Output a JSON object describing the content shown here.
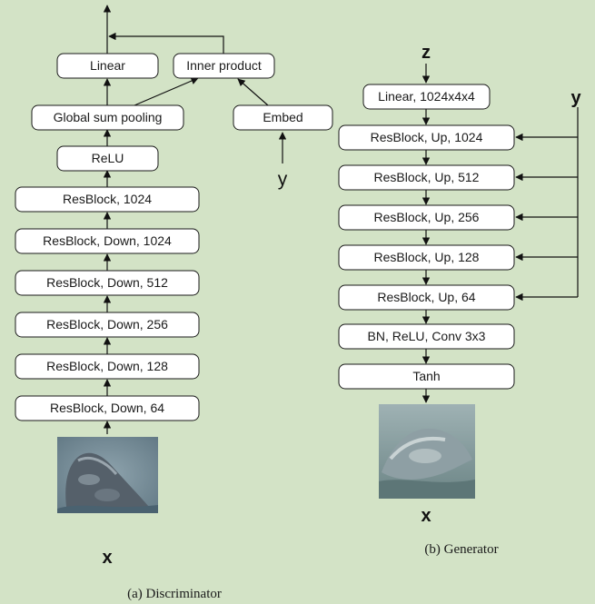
{
  "discriminator": {
    "caption": "(a) Discriminator",
    "input_label": "x",
    "class_label": "y",
    "blocks": {
      "linear": "Linear",
      "inner_product": "Inner product",
      "global_sum_pooling": "Global sum pooling",
      "embed": "Embed",
      "relu": "ReLU",
      "resblock_1024": "ResBlock, 1024",
      "resblock_down_1024": "ResBlock, Down, 1024",
      "resblock_down_512": "ResBlock, Down, 512",
      "resblock_down_256": "ResBlock, Down, 256",
      "resblock_down_128": "ResBlock, Down, 128",
      "resblock_down_64": "ResBlock, Down, 64"
    }
  },
  "generator": {
    "caption": "(b) Generator",
    "input_label": "z",
    "class_label": "y",
    "output_label": "x",
    "blocks": {
      "linear": "Linear, 1024x4x4",
      "resblock_up_1024": "ResBlock, Up, 1024",
      "resblock_up_512": "ResBlock, Up, 512",
      "resblock_up_256": "ResBlock, Up, 256",
      "resblock_up_128": "ResBlock, Up, 128",
      "resblock_up_64": "ResBlock, Up, 64",
      "bn_relu_conv": "BN, ReLU, Conv 3x3",
      "tanh": "Tanh"
    }
  }
}
